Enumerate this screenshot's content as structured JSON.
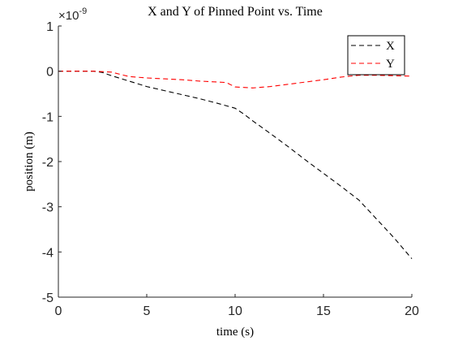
{
  "chart_data": {
    "type": "line",
    "title": "X and Y of Pinned Point vs. Time",
    "xlabel": "time (s)",
    "ylabel": "position (m)",
    "y_exponent_label": "×10",
    "y_exponent_power": "-9",
    "xlim": [
      0,
      20
    ],
    "ylim": [
      -5,
      1
    ],
    "x_ticks": [
      0,
      5,
      10,
      15,
      20
    ],
    "x_tick_labels": [
      "0",
      "5",
      "10",
      "15",
      "20"
    ],
    "y_ticks": [
      1,
      0,
      -1,
      -2,
      -3,
      -4,
      -5
    ],
    "y_tick_labels": [
      "1",
      "0",
      "-1",
      "-2",
      "-3",
      "-4",
      "-5"
    ],
    "grid": false,
    "legend_position": "top-right",
    "series": [
      {
        "name": "X",
        "color": "#000000",
        "line_style": "dashed",
        "x": [
          0,
          2.0,
          2.5,
          3.0,
          4.0,
          5.0,
          6.0,
          7.0,
          8.0,
          9.0,
          10.0,
          10.5,
          11.0,
          12.0,
          13.0,
          14.0,
          15.0,
          16.0,
          17.0,
          18.0,
          19.0,
          20.0
        ],
        "y": [
          0,
          0.0,
          -0.03,
          -0.1,
          -0.22,
          -0.34,
          -0.43,
          -0.52,
          -0.61,
          -0.71,
          -0.82,
          -0.95,
          -1.1,
          -1.38,
          -1.67,
          -1.97,
          -2.26,
          -2.55,
          -2.85,
          -3.27,
          -3.69,
          -4.15
        ]
      },
      {
        "name": "Y",
        "color": "#ff0000",
        "line_style": "dashed",
        "x": [
          0,
          2.0,
          3.0,
          4.0,
          5.0,
          6.0,
          7.0,
          8.0,
          9.0,
          9.5,
          10.0,
          10.5,
          11.0,
          12.0,
          13.0,
          14.0,
          15.0,
          16.0,
          17.0,
          18.0,
          19.0,
          20.0
        ],
        "y": [
          0,
          0.0,
          -0.02,
          -0.12,
          -0.15,
          -0.17,
          -0.19,
          -0.22,
          -0.24,
          -0.25,
          -0.35,
          -0.36,
          -0.37,
          -0.34,
          -0.29,
          -0.24,
          -0.19,
          -0.13,
          -0.09,
          -0.09,
          -0.1,
          -0.11
        ]
      }
    ]
  }
}
